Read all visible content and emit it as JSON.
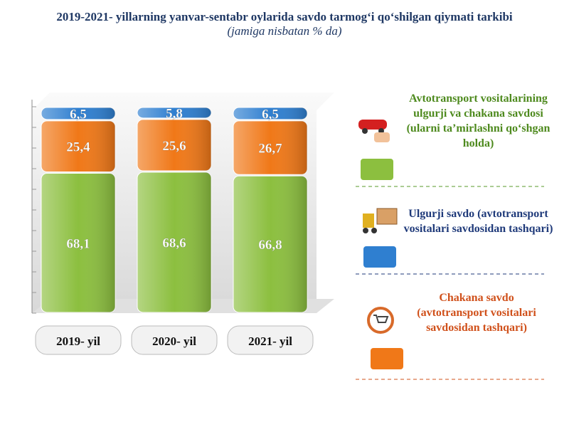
{
  "chart_data": {
    "type": "bar",
    "stacked": true,
    "title": "2019-2021- yillarning yanvar-sentabr oylarida savdo tarmog‘i qo‘shilgan qiymati tarkibi",
    "subtitle": "(jamiga nisbatan % da)",
    "categories": [
      "2019- yil",
      "2020- yil",
      "2021- yil"
    ],
    "ylim": [
      0,
      100
    ],
    "series": [
      {
        "name": "Avtotransport vositalarining ulgurji va chakana savdosi (ularni ta’mirlashni qo‘shgan holda)",
        "color": "#8cbf3f",
        "text_color": "#4e8a1e",
        "values": [
          68.1,
          68.6,
          66.8
        ],
        "value_labels": [
          "68,1",
          "68,6",
          "66,8"
        ]
      },
      {
        "name": "Chakana savdo (avtotransport vositalari savdosidan tashqari)",
        "color": "#f07818",
        "text_color": "#d0501a",
        "values": [
          25.4,
          25.6,
          26.7
        ],
        "value_labels": [
          "25,4",
          "25,6",
          "26,7"
        ]
      },
      {
        "name": "Ulgurji savdo (avtotransport vositalari savdosidan tashqari)",
        "color": "#2f7fd0",
        "text_color": "#1f3a7a",
        "values": [
          6.5,
          5.8,
          6.5
        ],
        "value_labels": [
          "6,5",
          "5,8",
          "6,5"
        ]
      }
    ]
  }
}
